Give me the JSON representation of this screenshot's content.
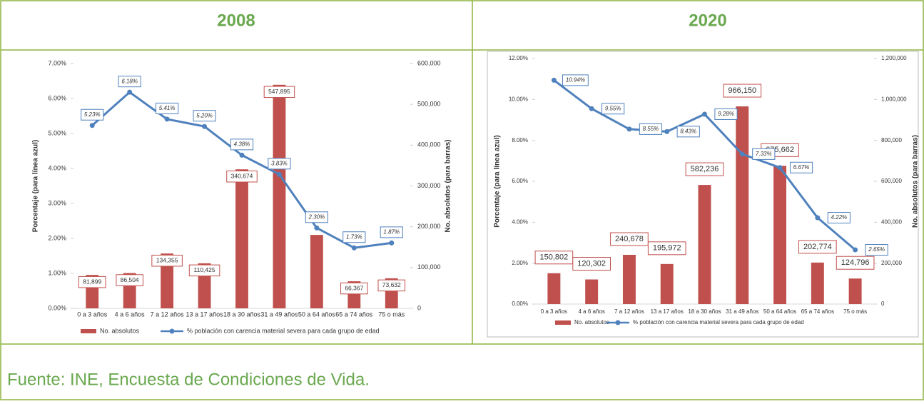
{
  "headers": [
    "2008",
    "2020"
  ],
  "source": "Fuente: INE, Encuesta de Condiciones de Vida.",
  "chart_data": [
    {
      "type": "combo",
      "categories": [
        "0 a 3 años",
        "4 a 6 años",
        "7 a 12 años",
        "13 a 17 años",
        "18 a 30 años",
        "31 a 49 años",
        "50 a 64 años",
        "65 a 74 años",
        "75 o más"
      ],
      "ylabel": "Porcentaje (para línea azul)",
      "y2label": "No. absolutos (para barras)",
      "ylim": [
        0,
        7
      ],
      "yticks": [
        {
          "value": 0,
          "label": "0.00%"
        },
        {
          "value": 1,
          "label": "1.00%"
        },
        {
          "value": 2,
          "label": "2.00%"
        },
        {
          "value": 3,
          "label": "3.00%"
        },
        {
          "value": 4,
          "label": "4.00%"
        },
        {
          "value": 5,
          "label": "5.00%"
        },
        {
          "value": 6,
          "label": "6.00%"
        },
        {
          "value": 7,
          "label": "7.00%"
        }
      ],
      "y2lim": [
        0,
        600000
      ],
      "y2ticks": [
        0,
        {
          "value": 100000,
          "label": "100,000"
        },
        {
          "value": 200000,
          "label": "200,000"
        },
        {
          "value": 300000,
          "label": "300,000"
        },
        {
          "value": 400000,
          "label": "400,000"
        },
        {
          "value": 500000,
          "label": "500,000"
        },
        {
          "value": 600000,
          "label": "600,000"
        }
      ],
      "series": [
        {
          "name": "No. absolutos",
          "color": "#c0504d",
          "axis": "y2",
          "kind": "bar",
          "values": [
            81899,
            86504,
            134355,
            110425,
            340674,
            547895,
            180000,
            66367,
            73632
          ],
          "value_labels": [
            "81,899",
            "86,504",
            "134,355",
            "110,425",
            "340,674",
            "547,895",
            null,
            "66,367",
            "73,632"
          ]
        },
        {
          "name": "% población con carencia material severa para cada grupo de edad",
          "color": "#4f81bd",
          "kind": "line",
          "values": [
            5.23,
            6.18,
            5.41,
            5.2,
            4.38,
            3.83,
            2.3,
            1.73,
            1.87
          ],
          "value_labels": [
            "5.23%",
            "6.18%",
            "5.41%",
            "5.20%",
            "4.38%",
            "3.83%",
            "2.30%",
            "1.73%",
            "1.87%"
          ]
        }
      ]
    },
    {
      "type": "combo",
      "categories": [
        "0 a 3 años",
        "4 a 6 años",
        "7 a 12 años",
        "13 a 17 años",
        "18 a 30 años",
        "31 a 49 años",
        "50 a 64 años",
        "65 a 74 años",
        "75 o más"
      ],
      "ylabel": "Porcentaje (para línea azul)",
      "y2label": "No. absolutos (para barras)",
      "ylim": [
        0,
        12
      ],
      "yticks": [
        {
          "value": 0,
          "label": "0.00%"
        },
        {
          "value": 2,
          "label": "2.00%"
        },
        {
          "value": 4,
          "label": "4.00%"
        },
        {
          "value": 6,
          "label": "6.00%"
        },
        {
          "value": 8,
          "label": "8.00%"
        },
        {
          "value": 10,
          "label": "10.00%"
        },
        {
          "value": 12,
          "label": "12.00%"
        }
      ],
      "y2lim": [
        0,
        1200000
      ],
      "y2ticks": [
        0,
        {
          "value": 200000,
          "label": "200,000"
        },
        {
          "value": 400000,
          "label": "400,000"
        },
        {
          "value": 600000,
          "label": "600,000"
        },
        {
          "value": 800000,
          "label": "800,000"
        },
        {
          "value": 1000000,
          "label": "1,000,000"
        },
        {
          "value": 1200000,
          "label": "1,200,000"
        }
      ],
      "series": [
        {
          "name": "No. absolutos",
          "color": "#c0504d",
          "axis": "y2",
          "kind": "bar",
          "values": [
            150802,
            120302,
            240678,
            195972,
            582236,
            966150,
            675662,
            202774,
            124796
          ],
          "value_labels": [
            "150,802",
            "120,302",
            "240,678",
            "195,972",
            "582,236",
            "966,150",
            "675,662",
            "202,774",
            "124,796"
          ]
        },
        {
          "name": "% población con carencia material severa para cada grupo de edad",
          "color": "#4f81bd",
          "kind": "line",
          "values": [
            10.94,
            9.55,
            8.55,
            8.43,
            9.28,
            7.33,
            6.67,
            4.22,
            2.65
          ],
          "value_labels": [
            "10.94%",
            "9.55%",
            "8.55%",
            "8.43%",
            "9.28%",
            "7.33%",
            "6.67%",
            "4.22%",
            "2.65%"
          ]
        }
      ]
    }
  ]
}
